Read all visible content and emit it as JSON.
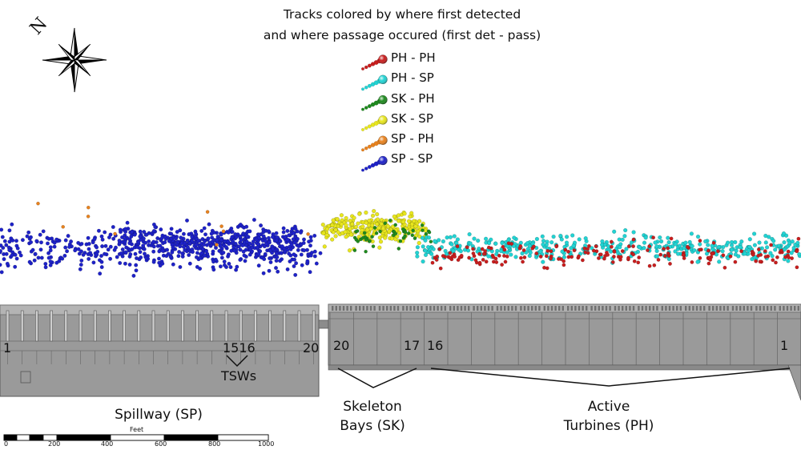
{
  "title_line1": "Tracks colored by where first detected",
  "title_line2": "and where passage occured (first det - pass)",
  "north_letter": "N",
  "legend": [
    {
      "label": "PH - PH",
      "color": "#c81e1e",
      "name": "legend-ph-ph"
    },
    {
      "label": "PH - SP",
      "color": "#22d3d3",
      "name": "legend-ph-sp"
    },
    {
      "label": "SK - PH",
      "color": "#1e8a1e",
      "name": "legend-sk-ph"
    },
    {
      "label": "SK - SP",
      "color": "#e8e61e",
      "name": "legend-sk-sp"
    },
    {
      "label": "SP - PH",
      "color": "#e8821e",
      "name": "legend-sp-ph"
    },
    {
      "label": "SP - SP",
      "color": "#1e22c8",
      "name": "legend-sp-sp"
    }
  ],
  "bay_labels": {
    "spillway_start": "1",
    "tsw_bays": "1516",
    "spillway_end": "20",
    "skeleton_start": "20",
    "skeleton_end": "17",
    "turbine_start": "16",
    "turbine_end": "1"
  },
  "tsw_label": "TSWs",
  "sections": {
    "spillway": "Spillway (SP)",
    "skeleton_line1": "Skeleton",
    "skeleton_line2": "Bays (SK)",
    "turbines_line1": "Active",
    "turbines_line2": "Turbines (PH)"
  },
  "scale_bar": {
    "unit": "Feet",
    "ticks": [
      "0",
      "200",
      "400",
      "600",
      "800",
      "1000"
    ]
  },
  "colors": {
    "dam_fill": "#9a9a9a",
    "dam_line": "#5a5a5a",
    "background": "#ffffff"
  }
}
